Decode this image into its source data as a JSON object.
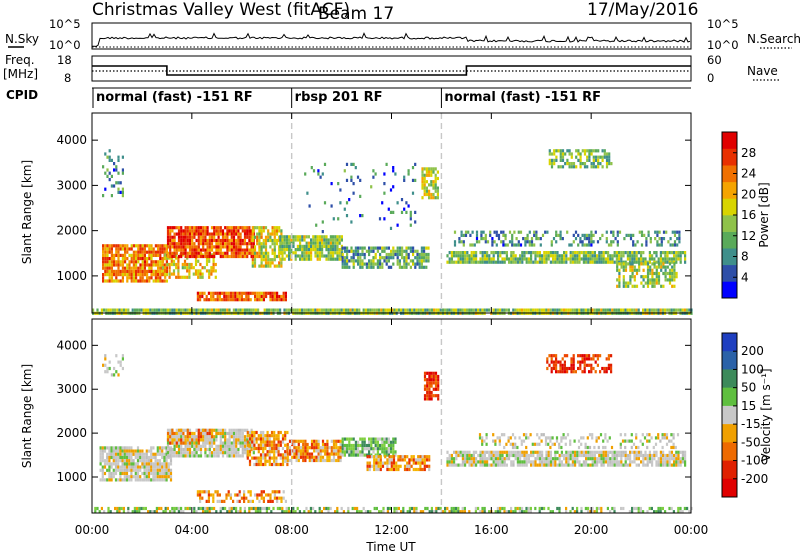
{
  "header": {
    "title": "Christmas Valley West (fitACF)",
    "beam": "Beam 17",
    "date": "17/May/2016"
  },
  "nsky_panel": {
    "label": "N.Sky",
    "y_ticks": [
      "10^5",
      "10^0"
    ],
    "right_label": "N.Search",
    "right_ticks": [
      "10^5",
      "10^0"
    ]
  },
  "freq_panel": {
    "label_line1": "Freq.",
    "label_line2": "[MHz]",
    "y_ticks": [
      "18",
      "8"
    ],
    "right_label": "Nave",
    "right_ticks": [
      "60",
      "0"
    ],
    "freq_steps": [
      {
        "start_hr": 0,
        "end_hr": 3.0,
        "mhz": 14.2
      },
      {
        "start_hr": 3.0,
        "end_hr": 15.0,
        "mhz": 10.6
      },
      {
        "start_hr": 15.0,
        "end_hr": 24,
        "mhz": 14.2
      }
    ],
    "nave_level": 24
  },
  "cpid_panel": {
    "label": "CPID",
    "segments": [
      {
        "label": "normal (fast) -151 RF",
        "start_hr": 0
      },
      {
        "label": "rbsp 201 RF",
        "start_hr": 8.0
      },
      {
        "label": "normal (fast) -151 RF",
        "start_hr": 14.0
      }
    ]
  },
  "chart_data": [
    {
      "type": "heatmap",
      "quantity": "Power",
      "xlabel": "",
      "ylabel": "Slant Range [km]",
      "xlim_hr": [
        0,
        24
      ],
      "ylim_km": [
        180,
        4600
      ],
      "y_ticks": [
        "1000",
        "2000",
        "3000",
        "4000"
      ],
      "y_tick_values": [
        1000,
        2000,
        3000,
        4000
      ],
      "vertical_dashed_lines_hr": [
        8.0,
        14.0
      ],
      "colorbar": {
        "label": "Power [dB]",
        "ticks": [
          "4",
          "8",
          "12",
          "16",
          "20",
          "24",
          "28"
        ],
        "tick_values": [
          4,
          8,
          12,
          16,
          20,
          24,
          28
        ],
        "range": [
          0,
          32
        ],
        "colors": [
          "#0000ff",
          "#2e4fa8",
          "#3f8f8b",
          "#5aaa5a",
          "#8fc24a",
          "#d8d400",
          "#f5a400",
          "#f07000",
          "#e83000",
          "#e00000"
        ]
      },
      "regions": [
        {
          "t0": 0.0,
          "t1": 24.0,
          "r0": 180,
          "r1": 280,
          "value": 14,
          "density": 0.95
        },
        {
          "t0": 0.4,
          "t1": 3.0,
          "r0": 900,
          "r1": 1700,
          "value": 23,
          "density": 0.85
        },
        {
          "t0": 2.8,
          "t1": 5.0,
          "r0": 1000,
          "r1": 1500,
          "value": 18,
          "density": 0.55
        },
        {
          "t0": 3.0,
          "t1": 6.5,
          "r0": 1400,
          "r1": 2100,
          "value": 26,
          "density": 0.9
        },
        {
          "t0": 6.4,
          "t1": 7.6,
          "r0": 1200,
          "r1": 2100,
          "value": 17,
          "density": 0.75
        },
        {
          "t0": 4.2,
          "t1": 7.8,
          "r0": 480,
          "r1": 650,
          "value": 25,
          "density": 0.85
        },
        {
          "t0": 7.5,
          "t1": 10.0,
          "r0": 1350,
          "r1": 1900,
          "value": 14,
          "density": 0.85
        },
        {
          "t0": 10.0,
          "t1": 13.5,
          "r0": 1200,
          "r1": 1650,
          "value": 11,
          "density": 0.7
        },
        {
          "t0": 0.4,
          "t1": 1.2,
          "r0": 2800,
          "r1": 3800,
          "value": 8,
          "density": 0.25
        },
        {
          "t0": 14.2,
          "t1": 23.8,
          "r0": 1300,
          "r1": 1550,
          "value": 13,
          "density": 0.85
        },
        {
          "t0": 14.5,
          "t1": 23.5,
          "r0": 1650,
          "r1": 2000,
          "value": 9,
          "density": 0.35
        },
        {
          "t0": 21.0,
          "t1": 23.4,
          "r0": 800,
          "r1": 1300,
          "value": 15,
          "density": 0.6
        },
        {
          "t0": 18.3,
          "t1": 20.8,
          "r0": 3400,
          "r1": 3800,
          "value": 13,
          "density": 0.55
        },
        {
          "t0": 13.2,
          "t1": 13.9,
          "r0": 2700,
          "r1": 3400,
          "value": 16,
          "density": 0.75
        },
        {
          "t0": 8.5,
          "t1": 13.0,
          "r0": 2000,
          "r1": 3500,
          "value": 7,
          "density": 0.06
        }
      ]
    },
    {
      "type": "heatmap",
      "quantity": "Velocity",
      "xlabel": "Time UT",
      "ylabel": "Slant Range [km]",
      "xlim_hr": [
        0,
        24
      ],
      "ylim_km": [
        180,
        4600
      ],
      "x_ticks": [
        "00:00",
        "04:00",
        "08:00",
        "12:00",
        "16:00",
        "20:00",
        "00:00"
      ],
      "x_tick_values": [
        0,
        4,
        8,
        12,
        16,
        20,
        24
      ],
      "y_ticks": [
        "1000",
        "2000",
        "3000",
        "4000"
      ],
      "y_tick_values": [
        1000,
        2000,
        3000,
        4000
      ],
      "vertical_dashed_lines_hr": [
        8.0,
        14.0
      ],
      "colorbar": {
        "label": "Velocity [m s⁻¹]",
        "ticks": [
          "200",
          "100",
          "50",
          "15",
          "-15",
          "-50",
          "-100",
          "-200"
        ],
        "colors": [
          "#1f3fc0",
          "#2b62a8",
          "#3c8a5a",
          "#5fbf3f",
          "#c8c8c8",
          "#f0a000",
          "#ee6a00",
          "#e02000",
          "#e00000"
        ]
      },
      "regions": [
        {
          "t0": 0.0,
          "t1": 24.0,
          "r0": 180,
          "r1": 320,
          "value": "grass",
          "density": 0.6
        },
        {
          "t0": 0.3,
          "t1": 3.2,
          "r0": 900,
          "r1": 1700,
          "value": "grey",
          "density": 0.85
        },
        {
          "t0": 3.0,
          "t1": 6.5,
          "r0": 1450,
          "r1": 2100,
          "value": "grey",
          "density": 0.85
        },
        {
          "t0": 3.0,
          "t1": 4.8,
          "r0": 1750,
          "r1": 2100,
          "value": "orange",
          "density": 0.6
        },
        {
          "t0": 6.2,
          "t1": 7.8,
          "r0": 1300,
          "r1": 2050,
          "value": "orange",
          "density": 0.75
        },
        {
          "t0": 4.2,
          "t1": 7.8,
          "r0": 480,
          "r1": 700,
          "value": "orange",
          "density": 0.5
        },
        {
          "t0": 7.8,
          "t1": 10.0,
          "r0": 1350,
          "r1": 1850,
          "value": "orange",
          "density": 0.8
        },
        {
          "t0": 10.0,
          "t1": 12.2,
          "r0": 1500,
          "r1": 1900,
          "value": "green",
          "density": 0.85
        },
        {
          "t0": 11.0,
          "t1": 13.5,
          "r0": 1200,
          "r1": 1500,
          "value": "orange",
          "density": 0.8
        },
        {
          "t0": 13.3,
          "t1": 13.9,
          "r0": 2800,
          "r1": 3400,
          "value": "red",
          "density": 0.8
        },
        {
          "t0": 14.2,
          "t1": 23.8,
          "r0": 1300,
          "r1": 1600,
          "value": "grey",
          "density": 0.85
        },
        {
          "t0": 15.5,
          "t1": 23.5,
          "r0": 1650,
          "r1": 2000,
          "value": "grey",
          "density": 0.3
        },
        {
          "t0": 18.2,
          "t1": 20.8,
          "r0": 3400,
          "r1": 3800,
          "value": "red",
          "density": 0.55
        },
        {
          "t0": 0.4,
          "t1": 1.2,
          "r0": 3300,
          "r1": 3800,
          "value": "grey",
          "density": 0.3
        }
      ]
    }
  ]
}
